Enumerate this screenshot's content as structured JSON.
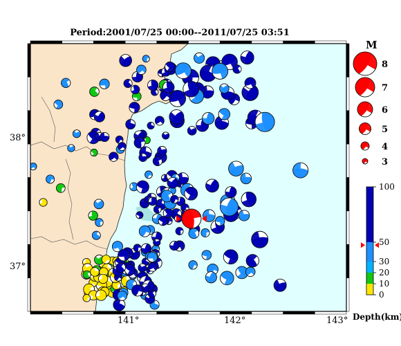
{
  "title": "Period:2001/07/25 00:00--2011/07/25 03:51",
  "colors": {
    "land": "#fae5c9",
    "sea": "#e0ffff",
    "shallow_sea": "#a8e6e6",
    "blue": "#0000b4",
    "mid_blue": "#1e90ff",
    "green": "#11c811",
    "yellow": "#ffe600",
    "highlight": "#ff0000"
  },
  "lat_labels": [
    "38°",
    "37°"
  ],
  "lon_labels": [
    "141°",
    "142°",
    "143°"
  ],
  "magnitude_legend": {
    "heading": "M",
    "entries": [
      "8",
      "7",
      "6",
      "5",
      "4",
      "3"
    ]
  },
  "depth_scale": {
    "ticks": [
      "100",
      "50",
      "30",
      "20",
      "10",
      "0"
    ],
    "label": "Depth(km)",
    "marker_value": 47
  },
  "events_generated_from_seed": true,
  "highlight_event": {
    "lon": 141.58,
    "lat": 37.46,
    "mag": 6.0
  }
}
